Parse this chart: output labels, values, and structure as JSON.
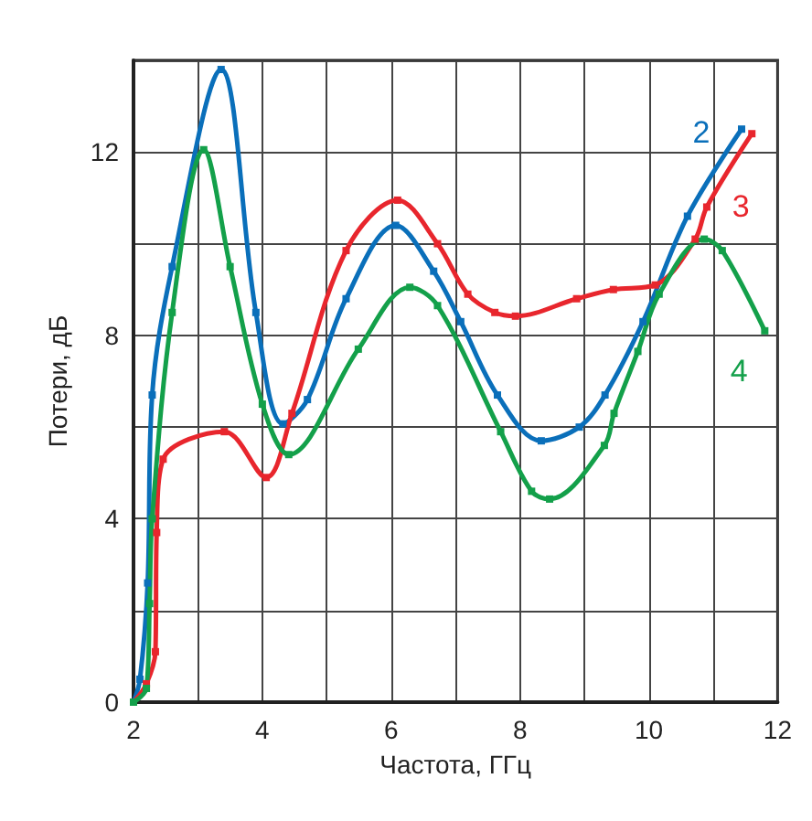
{
  "chart_data": {
    "type": "line",
    "xlabel": "Частота, ГГц",
    "ylabel": "Потери, дБ",
    "xlim": [
      2,
      12
    ],
    "ylim": [
      0,
      14
    ],
    "xticks": [
      2,
      {
        "value": 3,
        "label": null
      },
      4,
      {
        "value": 5,
        "label": null
      },
      6,
      {
        "value": 7,
        "label": null
      },
      8,
      {
        "value": 9,
        "label": null
      },
      10,
      {
        "value": 11,
        "label": null
      },
      12
    ],
    "yticks": [
      0,
      {
        "value": 2,
        "label": null
      },
      4,
      {
        "value": 6,
        "label": null
      },
      8,
      {
        "value": 10,
        "label": null
      },
      12,
      {
        "value": 14,
        "label": null
      }
    ],
    "grid": true,
    "legend": false,
    "marker": "square",
    "line_style": "solid",
    "series": [
      {
        "name": "2",
        "color": "#0a6fba",
        "x": [
          2,
          2.1,
          2.22,
          2.29,
          2.6,
          3.36,
          3.9,
          4.32,
          4.7,
          5.3,
          6.07,
          6.66,
          7.08,
          7.65,
          8.33,
          8.92,
          9.32,
          9.91,
          10.6,
          11.44
        ],
        "values": [
          0,
          0.5,
          2.6,
          6.7,
          9.5,
          13.8,
          8.5,
          6.07,
          6.6,
          8.8,
          10.4,
          9.4,
          8.3,
          6.7,
          5.7,
          6.0,
          6.7,
          8.3,
          10.6,
          12.5
        ]
      },
      {
        "name": "3",
        "color": "#e8262d",
        "x": [
          2,
          2.2,
          2.34,
          2.36,
          2.46,
          3.41,
          4.06,
          4.46,
          5.3,
          6.1,
          6.72,
          7.19,
          7.61,
          7.93,
          8.88,
          9.45,
          10.1,
          10.72,
          10.9,
          11.6
        ],
        "values": [
          0,
          0.4,
          1.1,
          3.7,
          5.3,
          5.9,
          4.9,
          6.3,
          9.85,
          10.95,
          10.0,
          8.9,
          8.5,
          8.42,
          8.8,
          9.0,
          9.1,
          10.1,
          10.8,
          12.4
        ]
      },
      {
        "name": "4",
        "color": "#13a04a",
        "x": [
          2,
          2.2,
          2.25,
          2.29,
          2.6,
          3.09,
          3.5,
          4.0,
          4.41,
          5.49,
          6.29,
          6.72,
          7.7,
          8.18,
          8.46,
          9.31,
          9.46,
          9.83,
          10.16,
          10.86,
          11.14,
          11.8
        ],
        "values": [
          0,
          0.3,
          2.15,
          4.0,
          8.5,
          12.05,
          9.5,
          6.5,
          5.4,
          7.7,
          9.05,
          8.65,
          5.9,
          4.6,
          4.43,
          5.6,
          6.3,
          7.65,
          8.9,
          10.1,
          9.85,
          8.1
        ]
      }
    ]
  }
}
